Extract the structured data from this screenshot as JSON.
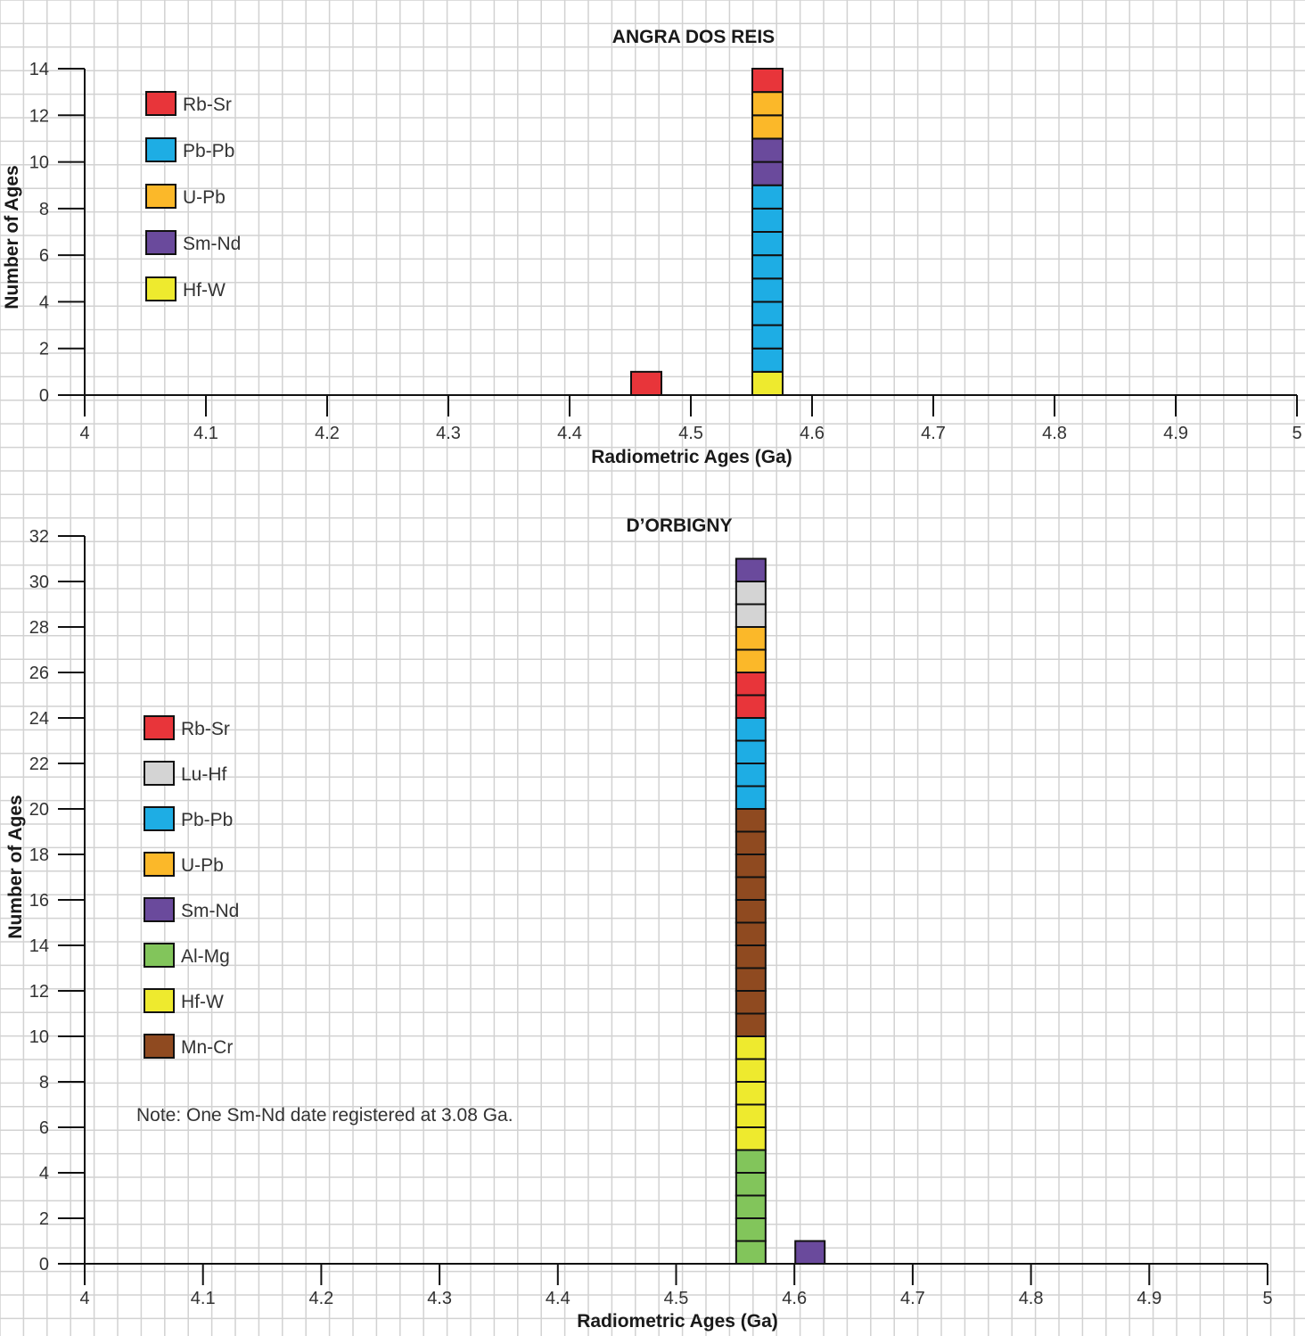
{
  "chart_data": [
    {
      "type": "bar",
      "title": "ANGRA DOS REIS",
      "xlabel": "Radiometric Ages (Ga)",
      "ylabel": "Number of Ages",
      "xlim": [
        4,
        5
      ],
      "ylim": [
        0,
        14
      ],
      "x_ticks": [
        "4",
        "4.1",
        "4.2",
        "4.3",
        "4.4",
        "4.5",
        "4.6",
        "4.7",
        "4.8",
        "4.9",
        "5"
      ],
      "y_ticks": [
        "0",
        "2",
        "4",
        "6",
        "8",
        "10",
        "12",
        "14"
      ],
      "legend": [
        {
          "label": "Rb-Sr",
          "color": "#e8353a"
        },
        {
          "label": "Pb-Pb",
          "color": "#1eade4"
        },
        {
          "label": "U-Pb",
          "color": "#fbb829"
        },
        {
          "label": "Sm-Nd",
          "color": "#6a4a9c"
        },
        {
          "label": "Hf-W",
          "color": "#eeea2e"
        }
      ],
      "stacks": [
        {
          "x": 4.45,
          "segments": [
            {
              "method": "Rb-Sr",
              "count": 1
            }
          ]
        },
        {
          "x": 4.55,
          "segments": [
            {
              "method": "Hf-W",
              "count": 1
            },
            {
              "method": "Pb-Pb",
              "count": 8
            },
            {
              "method": "Sm-Nd",
              "count": 2
            },
            {
              "method": "U-Pb",
              "count": 2
            },
            {
              "method": "Rb-Sr",
              "count": 1
            }
          ]
        }
      ]
    },
    {
      "type": "bar",
      "title": "D’ORBIGNY",
      "xlabel": "Radiometric Ages (Ga)",
      "ylabel": "Number of Ages",
      "xlim": [
        4,
        5
      ],
      "ylim": [
        0,
        32
      ],
      "x_ticks": [
        "4",
        "4.1",
        "4.2",
        "4.3",
        "4.4",
        "4.5",
        "4.6",
        "4.7",
        "4.8",
        "4.9",
        "5"
      ],
      "y_ticks": [
        "0",
        "2",
        "4",
        "6",
        "8",
        "10",
        "12",
        "14",
        "16",
        "18",
        "20",
        "22",
        "24",
        "26",
        "28",
        "30",
        "32"
      ],
      "legend": [
        {
          "label": "Rb-Sr",
          "color": "#e8353a"
        },
        {
          "label": "Lu-Hf",
          "color": "#d4d4d4"
        },
        {
          "label": "Pb-Pb",
          "color": "#1eade4"
        },
        {
          "label": "U-Pb",
          "color": "#fbb829"
        },
        {
          "label": "Sm-Nd",
          "color": "#6a4a9c"
        },
        {
          "label": "Al-Mg",
          "color": "#82c55b"
        },
        {
          "label": "Hf-W",
          "color": "#eeea2e"
        },
        {
          "label": "Mn-Cr",
          "color": "#8f4a20"
        }
      ],
      "stacks": [
        {
          "x": 4.55,
          "segments": [
            {
              "method": "Al-Mg",
              "count": 5
            },
            {
              "method": "Hf-W",
              "count": 5
            },
            {
              "method": "Mn-Cr",
              "count": 10
            },
            {
              "method": "Pb-Pb",
              "count": 4
            },
            {
              "method": "Rb-Sr",
              "count": 2
            },
            {
              "method": "U-Pb",
              "count": 2
            },
            {
              "method": "Lu-Hf",
              "count": 2
            },
            {
              "method": "Sm-Nd",
              "count": 1
            }
          ]
        },
        {
          "x": 4.6,
          "segments": [
            {
              "method": "Sm-Nd",
              "count": 1
            }
          ]
        }
      ],
      "note": "Note: One Sm-Nd date registered at 3.08 Ga."
    }
  ]
}
